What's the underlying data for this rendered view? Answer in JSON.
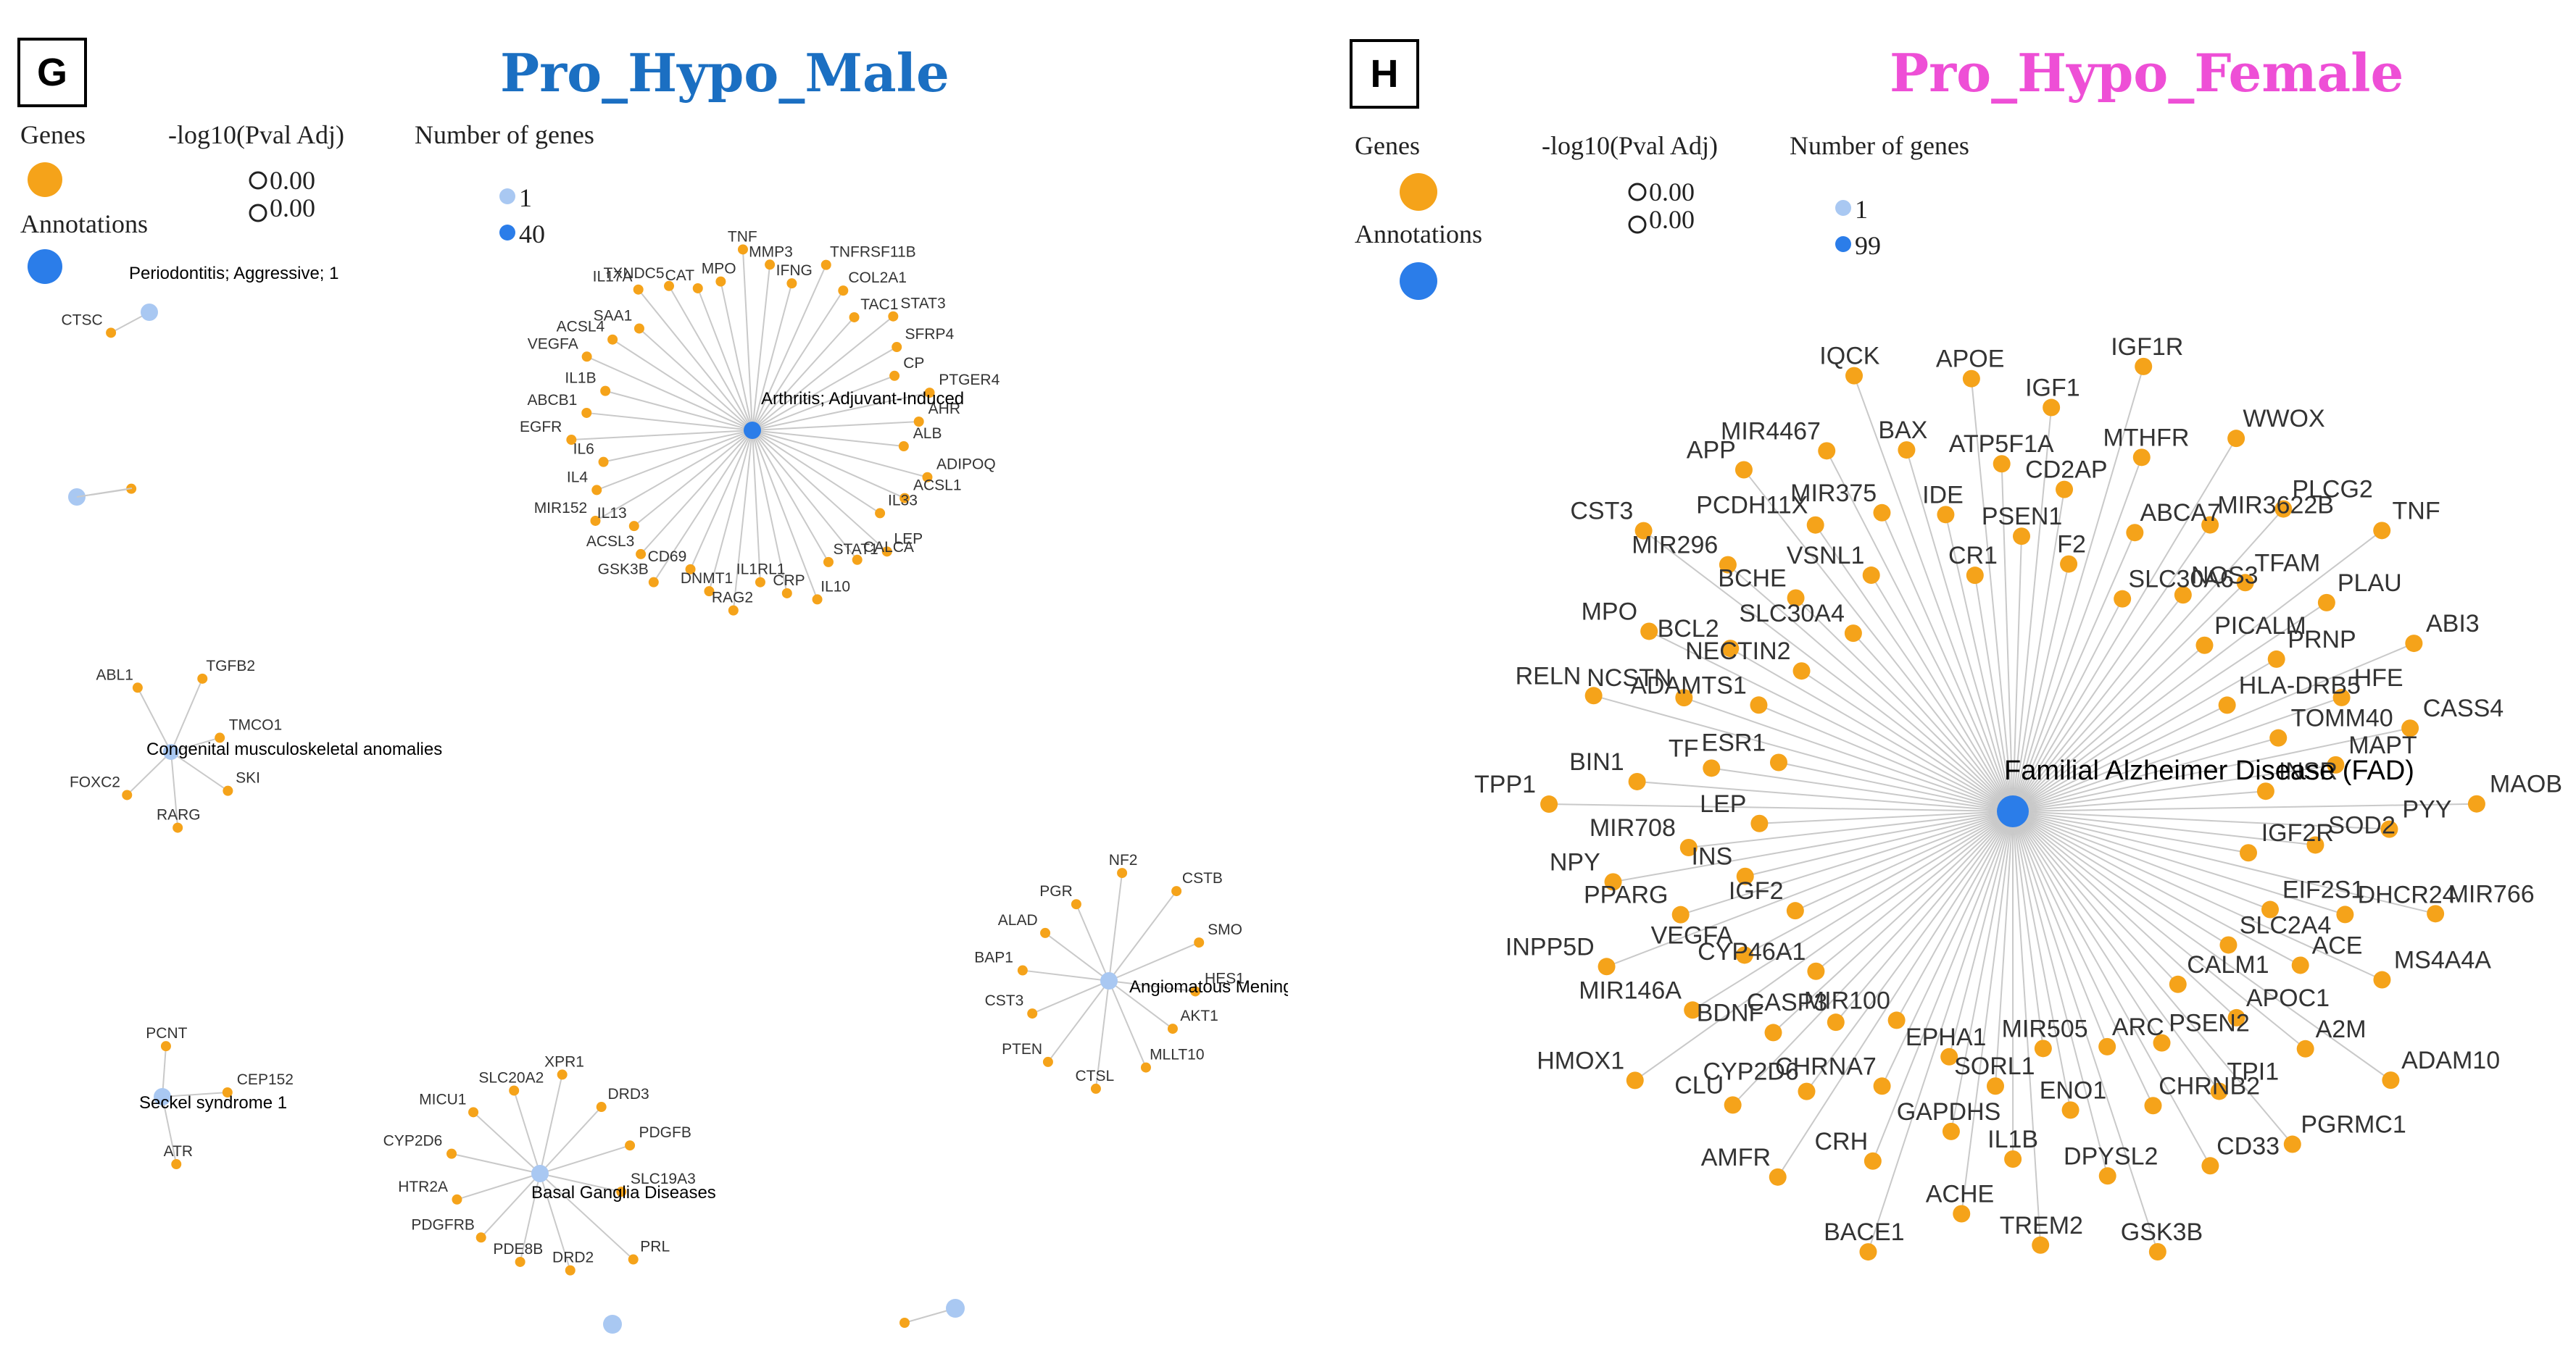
{
  "colors": {
    "gene": "#f5a31a",
    "annotation": "#2b7de9",
    "annotation_light": "#a9c8f2",
    "edge": "#c9c9c9",
    "title_male": "#1b6fc2",
    "title_female": "#ee4fd6",
    "label": "#333333"
  },
  "panels": [
    {
      "id": "G",
      "letter": "G",
      "title": "Pro_Hypo_Male",
      "legend": {
        "genes": "Genes",
        "annotations": "Annotations",
        "pval": "-log10(Pval Adj)",
        "pval_values": [
          "0.00",
          "0.00"
        ],
        "ngenes": "Number of genes",
        "ngenes_values": [
          "1",
          "40"
        ]
      },
      "clusters": [
        {
          "label": "Arthritis; Adjuvant-Induced",
          "genes": [
            "MPO",
            "TNF",
            "MMP3",
            "IFNG",
            "TNFRSF11B",
            "COL2A1",
            "TAC1",
            "STAT3",
            "SFRP4",
            "CP",
            "PTGER4",
            "AHR",
            "ALB",
            "ADIPOQ",
            "ACSL1",
            "IL33",
            "LEP",
            "CALCA",
            "STAT1",
            "IL10",
            "CRP",
            "IL1RL1",
            "RAG2",
            "DNMT1",
            "CD69",
            "GSK3B",
            "ACSL3",
            "IL13",
            "MIR152",
            "IL4",
            "IL6",
            "EGFR",
            "ABCB1",
            "IL1B",
            "VEGFA",
            "ACSL4",
            "SAA1",
            "IL17A",
            "TXNDC5",
            "CAT"
          ]
        },
        {
          "label": "Periodontitis; Aggressive; 1",
          "genes": [
            "CTSC"
          ]
        },
        {
          "label": "",
          "genes": [
            ""
          ]
        },
        {
          "label": "Congenital musculoskeletal anomalies",
          "genes": [
            "ABL1",
            "TGFB2",
            "TMCO1",
            "SKI",
            "RARG",
            "FOXC2"
          ]
        },
        {
          "label": "Angiomatous Meningioma",
          "genes": [
            "NF2",
            "CSTB",
            "SMO",
            "HES1",
            "AKT1",
            "MLLT10",
            "CTSL",
            "PTEN",
            "CST3",
            "BAP1",
            "ALAD",
            "PGR"
          ]
        },
        {
          "label": "Seckel syndrome 1",
          "genes": [
            "PCNT",
            "CEP152",
            "ATR"
          ]
        },
        {
          "label": "Basal Ganglia Diseases",
          "genes": [
            "XPR1",
            "DRD3",
            "PDGFB",
            "SLC19A3",
            "PRL",
            "DRD2",
            "PDE8B",
            "PDGFRB",
            "HTR2A",
            "CYP2D6",
            "MICU1",
            "SLC20A2"
          ]
        }
      ]
    },
    {
      "id": "H",
      "letter": "H",
      "title": "Pro_Hypo_Female",
      "legend": {
        "genes": "Genes",
        "annotations": "Annotations",
        "pval": "-log10(Pval Adj)",
        "pval_values": [
          "0.00",
          "0.00"
        ],
        "ngenes": "Number of genes",
        "ngenes_values": [
          "1",
          "99"
        ]
      },
      "clusters": [
        {
          "label": "Familial Alzheimer Disease (FAD)",
          "genes": [
            "IQCK",
            "BAX",
            "IDE",
            "CR1",
            "APOE",
            "ATP5F1A",
            "PSEN1",
            "IGF1",
            "CD2AP",
            "F2",
            "IGF1R",
            "MTHFR",
            "ABCA7",
            "SLC30A6",
            "WWOX",
            "MIR3622B",
            "NOS3",
            "PLCG2",
            "TFAM",
            "PICALM",
            "TNF",
            "PLAU",
            "PRNP",
            "HLA-DRB5",
            "ABI3",
            "HFE",
            "TOMM40",
            "CASS4",
            "MAPT",
            "INSR",
            "MAOB",
            "PYY",
            "SOD2",
            "IGF2R",
            "MIR766",
            "DHCR24",
            "EIF2S1",
            "MS4A4A",
            "ACE",
            "SLC2A4",
            "ADAM10",
            "A2M",
            "APOC1",
            "CALM1",
            "PGRMC1",
            "TPI1",
            "PSEN2",
            "CD33",
            "CHRNB2",
            "ARC",
            "GSK3B",
            "DPYSL2",
            "ENO1",
            "MIR505",
            "TREM2",
            "IL1B",
            "SORL1",
            "ACHE",
            "GAPDHS",
            "EPHA1",
            "BACE1",
            "CRH",
            "CHRNA7",
            "MIR100",
            "AMFR",
            "CYP2D6",
            "CASP3",
            "CLU",
            "BDNF",
            "CYP46A1",
            "HMOX1",
            "MIR146A",
            "VEGFA",
            "IGF2",
            "INPP5D",
            "PPARG",
            "INS",
            "NPY",
            "MIR708",
            "LEP",
            "TPP1",
            "BIN1",
            "TF",
            "ESR1",
            "RELN",
            "NCSTN",
            "ADAMTS1",
            "MPO",
            "BCL2",
            "NECTIN2",
            "CST3",
            "MIR296",
            "BCHE",
            "SLC30A4",
            "APP",
            "PCDH11X",
            "VSNL1",
            "MIR4467",
            "MIR375"
          ]
        }
      ]
    }
  ]
}
